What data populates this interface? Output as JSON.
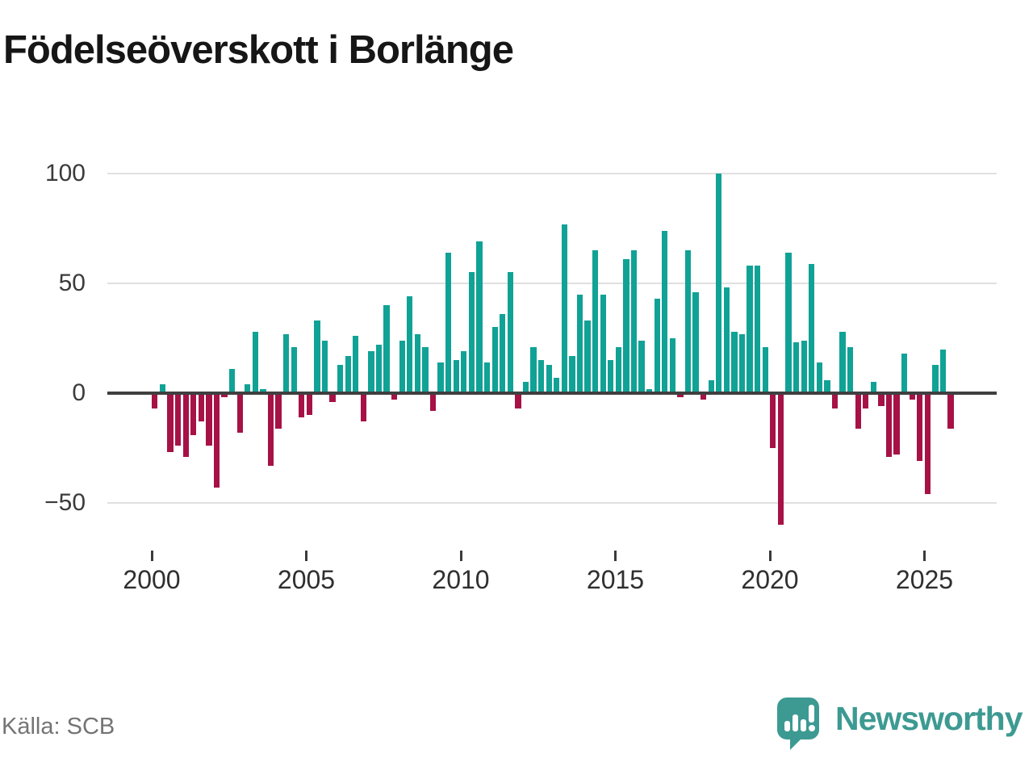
{
  "title": "Födelseöverskott i Borlänge",
  "source": "Källa: SCB",
  "brand": {
    "name": "Newsworthy",
    "color": "#3D9A92"
  },
  "colors": {
    "positive": "#11A296",
    "negative": "#A61246",
    "grid": "#E0E0E0",
    "zero_axis": "#3F3F3F",
    "title_text": "#161616",
    "axis_text": "#3B3B3B",
    "source_text": "#747474"
  },
  "chart_data": {
    "type": "bar",
    "title": "Födelseöverskott i Borlänge",
    "frequency": "quarterly",
    "x_start": "2000 Q1",
    "x_end": "2025 Q4",
    "grid": true,
    "legend_position": "none",
    "ylim": [
      -65,
      107
    ],
    "y_ticks": [
      {
        "value": 100,
        "label": "100"
      },
      {
        "value": 50,
        "label": "50"
      },
      {
        "value": 0,
        "label": "0"
      },
      {
        "value": -50,
        "label": "−50"
      }
    ],
    "x_tick_years": [
      2000,
      2005,
      2010,
      2015,
      2020,
      2025
    ],
    "series": [
      {
        "name": "Födelseöverskott",
        "values_by_year": {
          "2000": [
            -7,
            4,
            -27,
            -24
          ],
          "2001": [
            -29,
            -19,
            -13,
            -24
          ],
          "2002": [
            -43,
            -2,
            11,
            -18
          ],
          "2003": [
            4,
            28,
            2,
            -33
          ],
          "2004": [
            -16,
            27,
            21,
            -11
          ],
          "2005": [
            -10,
            33,
            24,
            -4
          ],
          "2006": [
            13,
            17,
            26,
            -13
          ],
          "2007": [
            19,
            22,
            40,
            -3
          ],
          "2008": [
            24,
            44,
            27,
            21
          ],
          "2009": [
            -8,
            14,
            64,
            15
          ],
          "2010": [
            19,
            55,
            69,
            14
          ],
          "2011": [
            30,
            36,
            55,
            -7
          ],
          "2012": [
            5,
            21,
            15,
            13
          ],
          "2013": [
            7,
            77,
            17,
            45
          ],
          "2014": [
            33,
            65,
            45,
            15
          ],
          "2015": [
            21,
            61,
            65,
            24
          ],
          "2016": [
            2,
            43,
            74,
            25
          ],
          "2017": [
            -2,
            65,
            46,
            -3
          ],
          "2018": [
            6,
            100,
            48,
            28
          ],
          "2019": [
            27,
            58,
            58,
            21
          ],
          "2020": [
            -25,
            -60,
            64,
            23
          ],
          "2021": [
            24,
            59,
            14,
            6
          ],
          "2022": [
            -7,
            28,
            21,
            -16
          ],
          "2023": [
            -7,
            5,
            -6,
            -29
          ],
          "2024": [
            -28,
            18,
            -3,
            -31
          ],
          "2025": [
            -46,
            13,
            20,
            -16
          ]
        }
      }
    ]
  }
}
